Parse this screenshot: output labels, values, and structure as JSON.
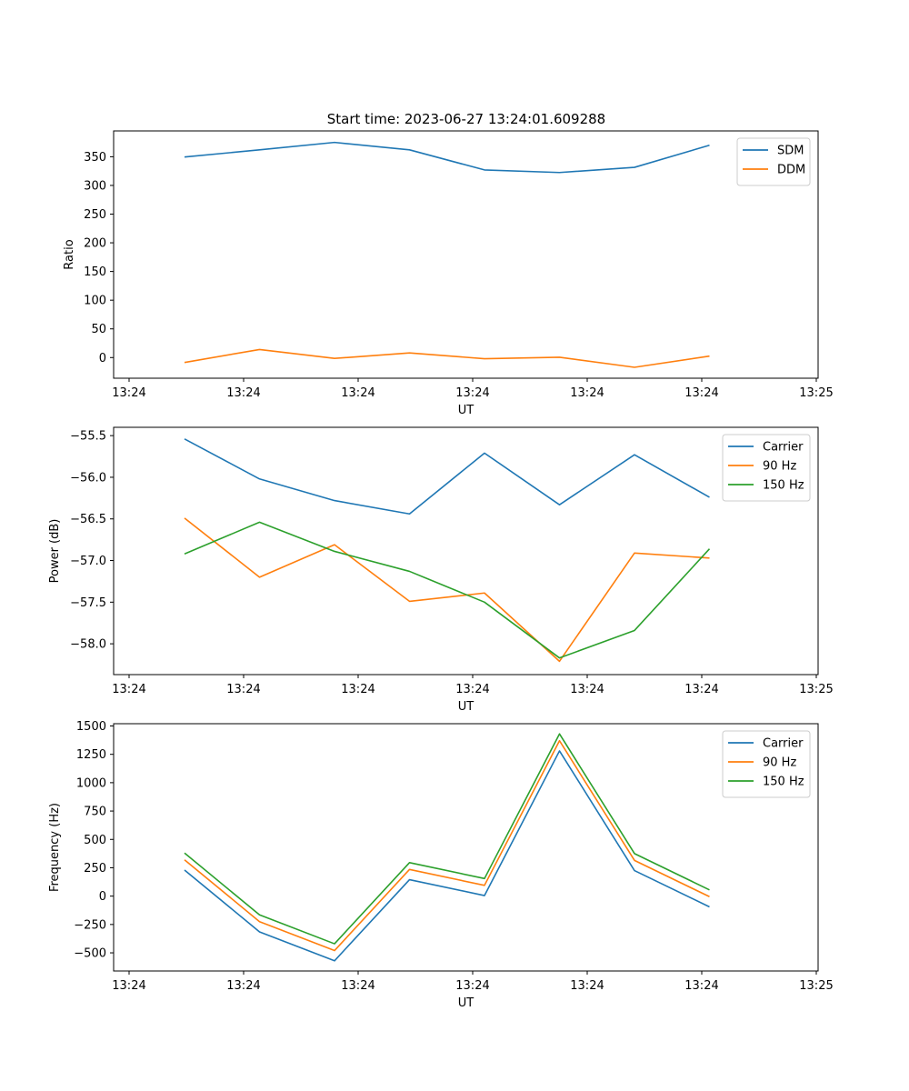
{
  "title": "Start time: 2023-06-27 13:24:01.609288",
  "x_tick_labels": [
    "13:24",
    "13:24",
    "13:24",
    "13:24",
    "13:24",
    "13:24",
    "13:24",
    "13:25"
  ],
  "chart_data": [
    {
      "type": "line",
      "xlabel": "UT",
      "ylabel": "Ratio",
      "ylim": [
        -36,
        395
      ],
      "yticks": [
        0,
        50,
        100,
        150,
        200,
        250,
        300,
        350
      ],
      "legend_placement": "top-right",
      "grid": false,
      "series": [
        {
          "name": "SDM",
          "color": "#1f77b4",
          "values": [
            349.5,
            362,
            375,
            362,
            327,
            322.5,
            331.5,
            370
          ]
        },
        {
          "name": "DDM",
          "color": "#ff7f0e",
          "values": [
            -8.5,
            14,
            -1.5,
            8,
            -2,
            0.5,
            -17,
            2.5
          ]
        }
      ]
    },
    {
      "type": "line",
      "xlabel": "UT",
      "ylabel": "Power (dB)",
      "ylim": [
        -58.37,
        -55.4
      ],
      "yticks": [
        -58.0,
        -57.5,
        -57.0,
        -56.5,
        -56.0,
        -55.5
      ],
      "ytick_labels": [
        "−58.0",
        "−57.5",
        "−57.0",
        "−56.5",
        "−56.0",
        "−55.5"
      ],
      "legend_placement": "top-right",
      "grid": false,
      "series": [
        {
          "name": "Carrier",
          "color": "#1f77b4",
          "values": [
            -55.54,
            -56.02,
            -56.28,
            -56.44,
            -55.71,
            -56.33,
            -55.73,
            -56.24
          ]
        },
        {
          "name": "90 Hz",
          "color": "#ff7f0e",
          "values": [
            -56.49,
            -57.2,
            -56.81,
            -57.49,
            -57.39,
            -58.21,
            -56.91,
            -56.97
          ]
        },
        {
          "name": "150 Hz",
          "color": "#2ca02c",
          "values": [
            -56.92,
            -56.54,
            -56.89,
            -57.13,
            -57.5,
            -58.17,
            -57.84,
            -56.86
          ]
        }
      ]
    },
    {
      "type": "line",
      "xlabel": "UT",
      "ylabel": "Frequency (Hz)",
      "ylim": [
        -660,
        1520
      ],
      "yticks": [
        -500,
        -250,
        0,
        250,
        500,
        750,
        1000,
        1250,
        1500
      ],
      "ytick_labels": [
        "−500",
        "−250",
        "0",
        "250",
        "500",
        "750",
        "1000",
        "1250",
        "1500"
      ],
      "legend_placement": "top-right",
      "grid": false,
      "series": [
        {
          "name": "Carrier",
          "color": "#1f77b4",
          "values": [
            230,
            -315,
            -570,
            145,
            5,
            1280,
            225,
            -95
          ]
        },
        {
          "name": "90 Hz",
          "color": "#ff7f0e",
          "values": [
            320,
            -225,
            -480,
            235,
            95,
            1370,
            315,
            -5
          ]
        },
        {
          "name": "150 Hz",
          "color": "#2ca02c",
          "values": [
            380,
            -165,
            -420,
            295,
            155,
            1430,
            375,
            55
          ]
        }
      ]
    }
  ]
}
